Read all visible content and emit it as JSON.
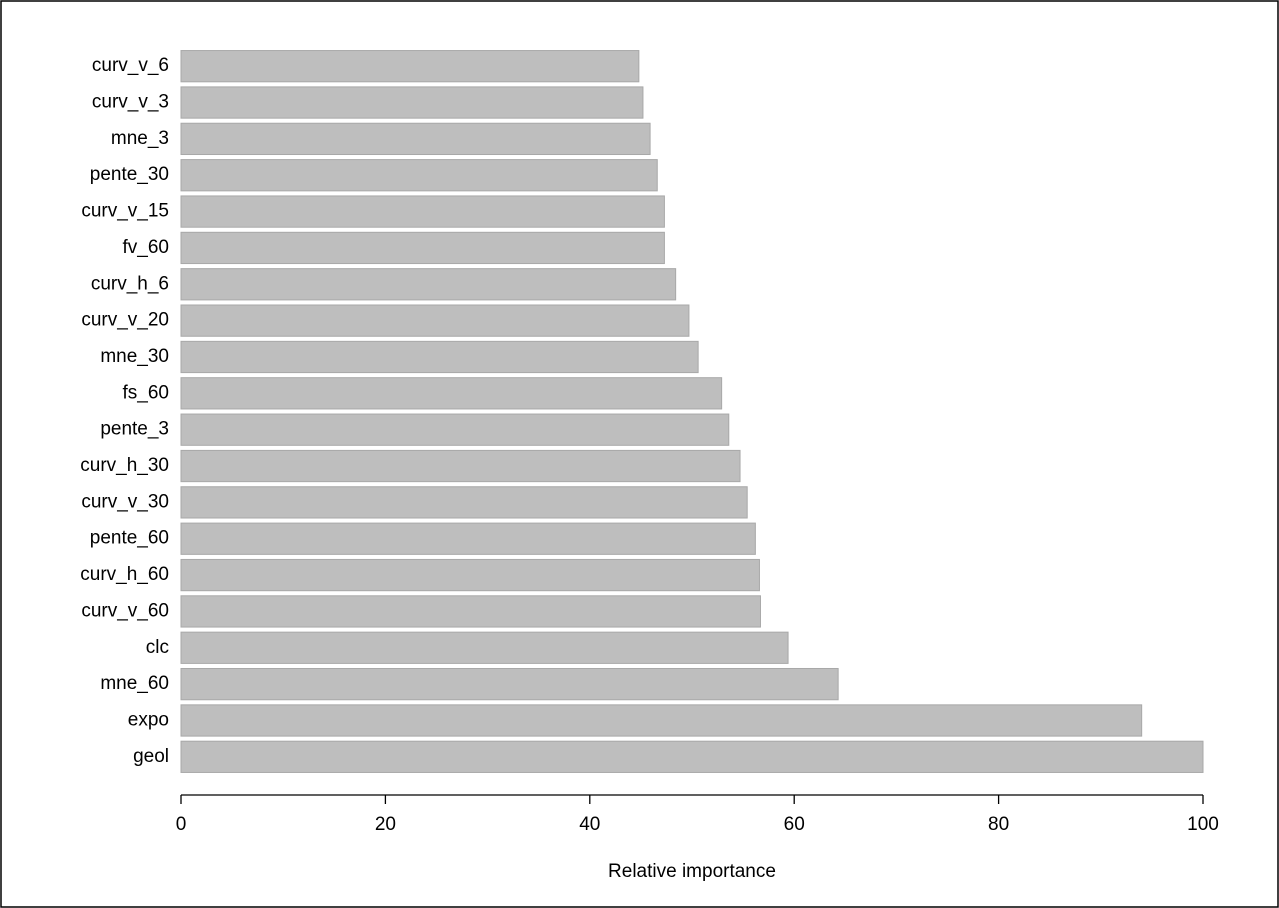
{
  "chart_data": {
    "type": "bar",
    "orientation": "horizontal",
    "categories": [
      "curv_v_6",
      "curv_v_3",
      "mne_3",
      "pente_30",
      "curv_v_15",
      "fv_60",
      "curv_h_6",
      "curv_v_20",
      "mne_30",
      "fs_60",
      "pente_3",
      "curv_h_30",
      "curv_v_30",
      "pente_60",
      "curv_h_60",
      "curv_v_60",
      "clc",
      "mne_60",
      "expo",
      "geol"
    ],
    "values": [
      44.8,
      45.2,
      45.9,
      46.6,
      47.3,
      47.3,
      48.4,
      49.7,
      50.6,
      52.9,
      53.6,
      54.7,
      55.4,
      56.2,
      56.6,
      56.7,
      59.4,
      64.3,
      94.0,
      100
    ],
    "color": "#bebebe",
    "x_label": "Relative importance",
    "xlim": [
      0,
      100
    ],
    "xticks": [
      0,
      20,
      40,
      60,
      80,
      100
    ],
    "grid": false
  }
}
